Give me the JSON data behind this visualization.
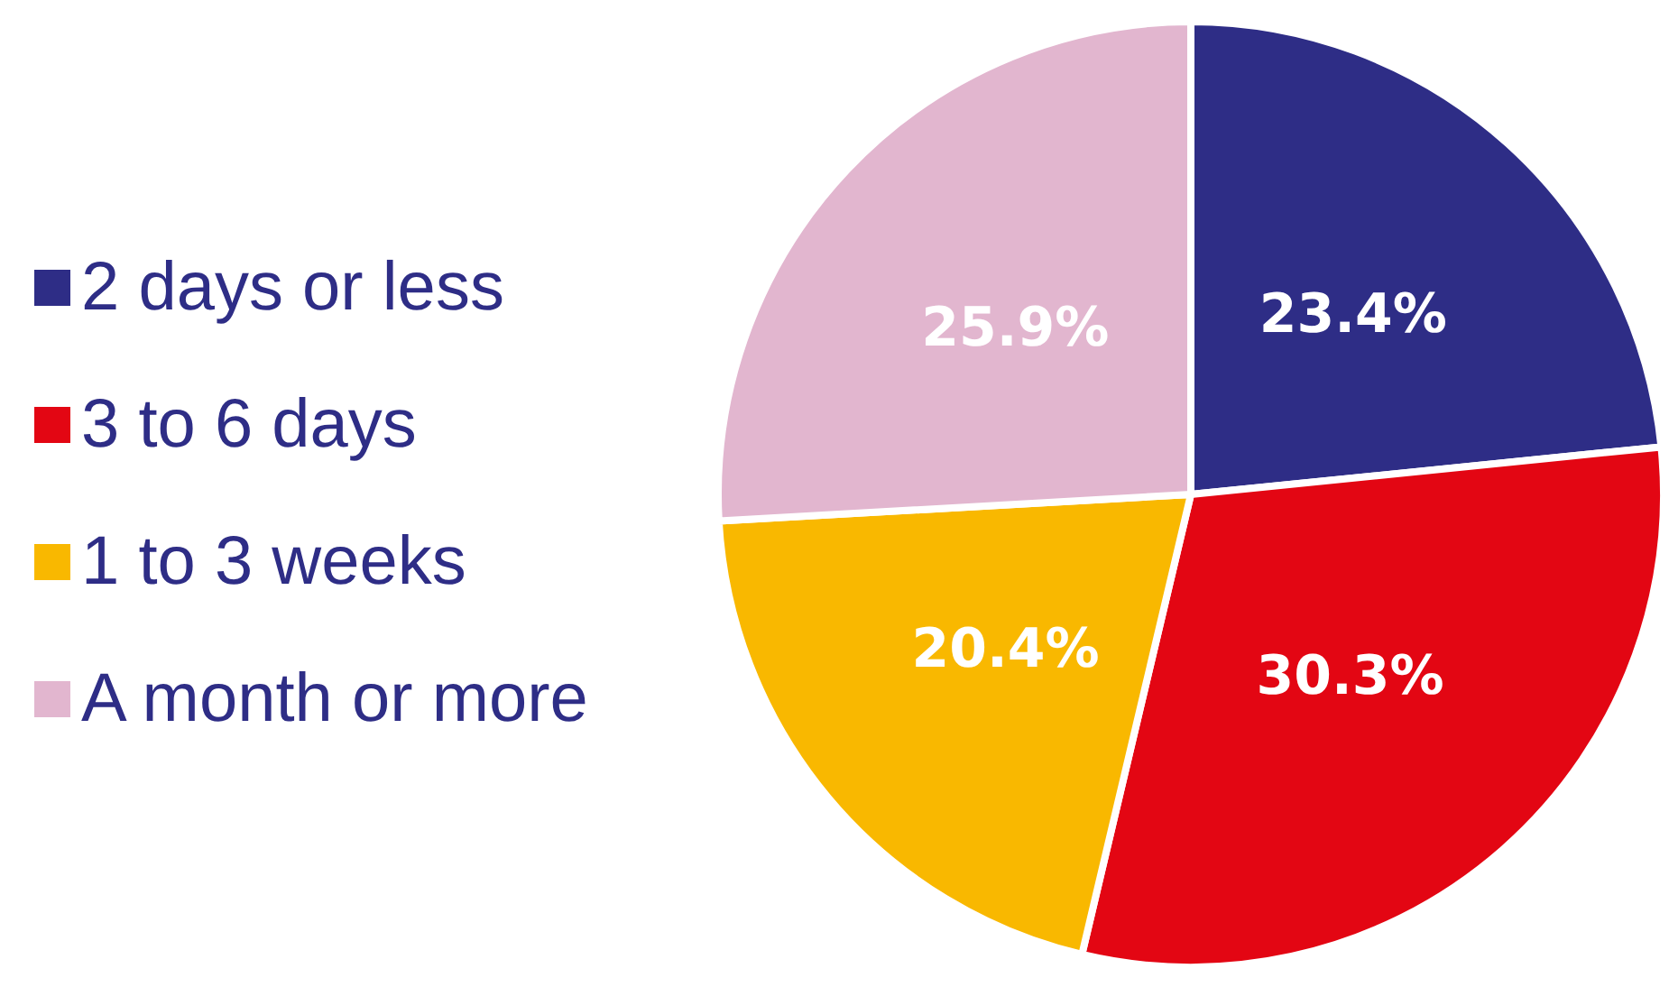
{
  "chart_data": {
    "type": "pie",
    "categories": [
      "2 days or less",
      "3 to 6 days",
      "1 to 3 weeks",
      "A month or more"
    ],
    "values": [
      23.4,
      30.3,
      20.4,
      25.9
    ],
    "colors": [
      "#2e2d86",
      "#e30613",
      "#f9b800",
      "#e2b6cf"
    ],
    "value_labels": [
      "23.4%",
      "30.3%",
      "20.4%",
      "25.9%"
    ],
    "legend": "left"
  }
}
